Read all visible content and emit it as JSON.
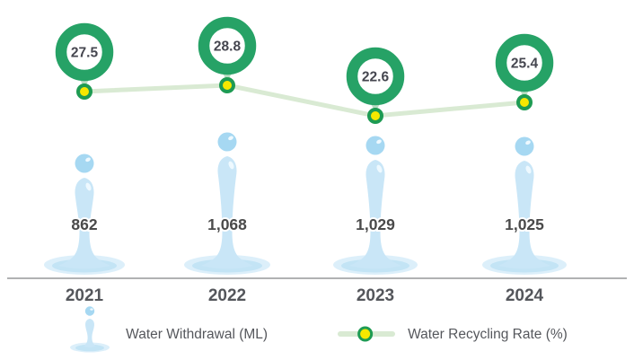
{
  "chart_data": {
    "type": "combo",
    "title": "",
    "categories": [
      "2021",
      "2022",
      "2023",
      "2024"
    ],
    "series": [
      {
        "name": "Water Withdrawal (ML)",
        "type": "pictogram-bar",
        "icon": "water-drop-icon",
        "unit": "ML",
        "values": [
          862,
          1068,
          1029,
          1025
        ],
        "labels": [
          "862",
          "1,068",
          "1,029",
          "1,025"
        ]
      },
      {
        "name": "Water Recycling Rate (%)",
        "type": "line",
        "marker": "ring-callout",
        "unit": "%",
        "values": [
          27.5,
          28.8,
          22.6,
          25.4
        ],
        "labels": [
          "27.5",
          "28.8",
          "22.6",
          "25.4"
        ]
      }
    ],
    "xlabel": "",
    "ylabel": "",
    "grid": false,
    "legend_position": "bottom"
  },
  "legend": {
    "items": [
      {
        "icon": "water-drop-icon",
        "label": "Water Withdrawal (ML)"
      },
      {
        "icon": "line-marker-icon",
        "label": "Water Recycling Rate (%)"
      }
    ]
  },
  "colors": {
    "ring_green": "#26a266",
    "tail_green": "#aed7ba",
    "line_green": "#d9ead3",
    "marker_fill": "#f7e800",
    "marker_stroke": "#1e9b53",
    "drop_body": "#c9e6f7",
    "drop_ball": "#a6d8f2",
    "puddle_outer": "#dceffa",
    "puddle_inner": "#c3e4f5",
    "highlight": "#eef9ff",
    "value_text": "#4a4a4a",
    "ring_text": "#45464f",
    "year_text": "#54565b",
    "axis_line": "#97989a"
  }
}
